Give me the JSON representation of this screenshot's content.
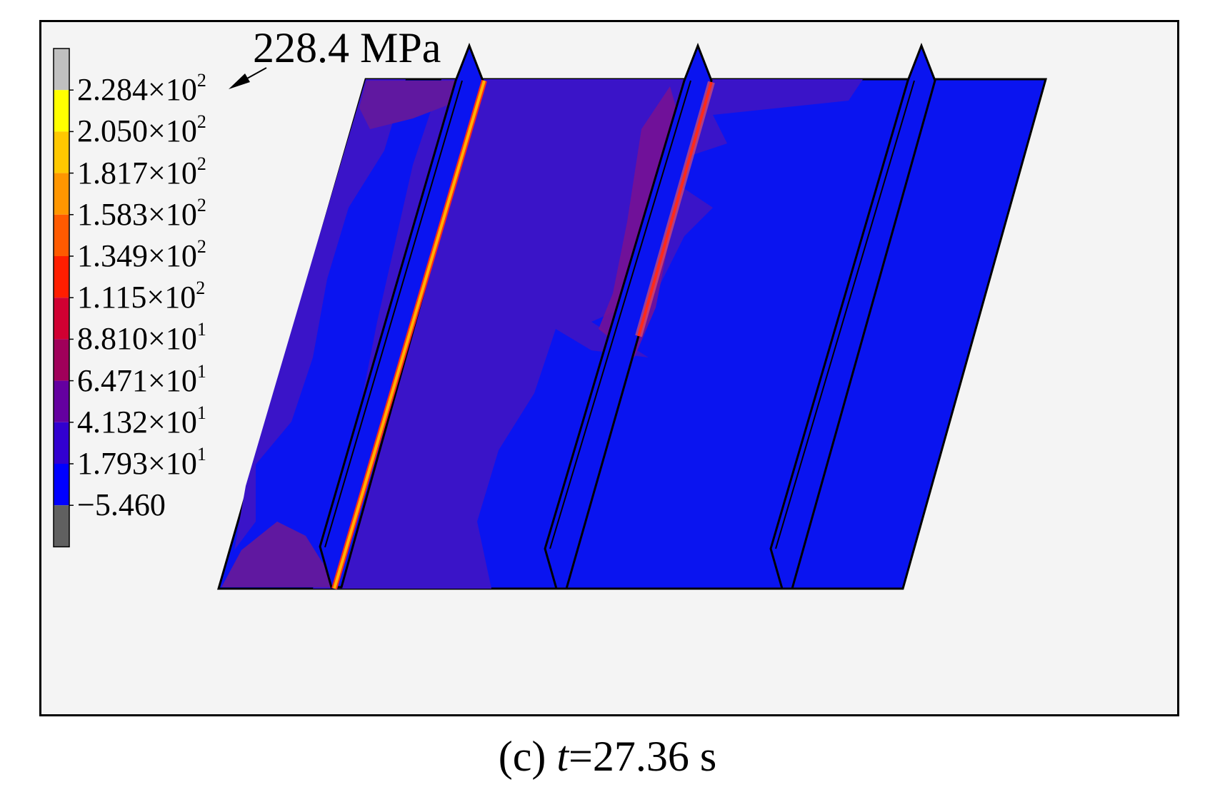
{
  "annotation": {
    "max_stress": "228.4 MPa"
  },
  "legend": {
    "labels": [
      {
        "mantissa": "2.284",
        "times": "×",
        "base": "10",
        "exp": "2"
      },
      {
        "mantissa": "2.050",
        "times": "×",
        "base": "10",
        "exp": "2"
      },
      {
        "mantissa": "1.817",
        "times": "×",
        "base": "10",
        "exp": "2"
      },
      {
        "mantissa": "1.583",
        "times": "×",
        "base": "10",
        "exp": "2"
      },
      {
        "mantissa": "1.349",
        "times": "×",
        "base": "10",
        "exp": "2"
      },
      {
        "mantissa": "1.115",
        "times": "×",
        "base": "10",
        "exp": "2"
      },
      {
        "mantissa": "8.810",
        "times": "×",
        "base": "10",
        "exp": "1"
      },
      {
        "mantissa": "6.471",
        "times": "×",
        "base": "10",
        "exp": "1"
      },
      {
        "mantissa": "4.132",
        "times": "×",
        "base": "10",
        "exp": "1"
      },
      {
        "mantissa": "1.793",
        "times": "×",
        "base": "10",
        "exp": "1"
      },
      {
        "mantissa": "−5.460",
        "times": "",
        "base": "",
        "exp": ""
      }
    ],
    "colors": [
      "#c0c0c0",
      "#ffff00",
      "#ffc800",
      "#ff9600",
      "#ff5a00",
      "#ff1e00",
      "#d00032",
      "#a0005a",
      "#6400a0",
      "#3200d0",
      "#0000ff",
      "#606060"
    ]
  },
  "caption": {
    "prefix": "(c) ",
    "variable": "t",
    "rest": "=27.36 s"
  },
  "colors": {
    "plate_blue": "#0a14f0",
    "plate_indigo": "#3a14c8",
    "plate_purple": "#6018a0",
    "weld_orange": "#ffb000",
    "weld_red": "#ff2a1a",
    "background": "#f4f4f4"
  }
}
